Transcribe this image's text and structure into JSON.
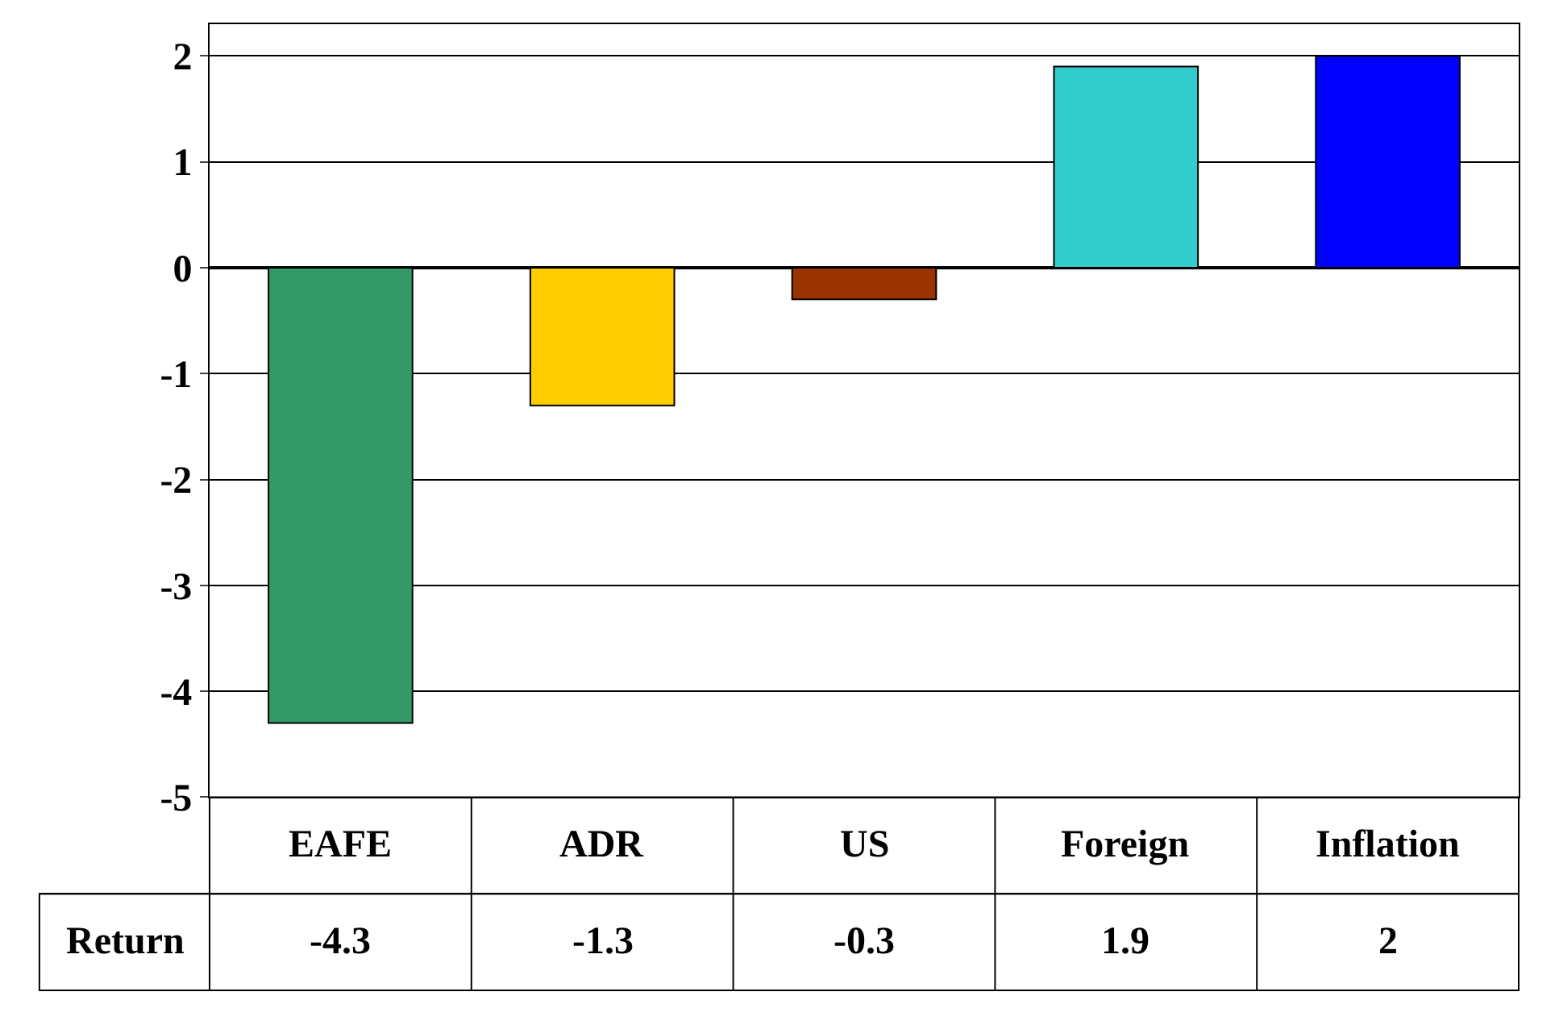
{
  "chart_data": {
    "type": "bar",
    "categories": [
      "EAFE",
      "ADR",
      "US",
      "Foreign",
      "Inflation"
    ],
    "series": [
      {
        "name": "Return",
        "values": [
          -4.3,
          -1.3,
          -0.3,
          1.9,
          2
        ]
      }
    ],
    "colors": [
      "#339966",
      "#ffcc00",
      "#993300",
      "#33cccc",
      "#0000ff"
    ],
    "ylim": [
      -5,
      2.3
    ],
    "yticks": [
      -5,
      -4,
      -3,
      -2,
      -1,
      0,
      1,
      2
    ],
    "grid": "y",
    "data_labels": true,
    "legend": false
  }
}
